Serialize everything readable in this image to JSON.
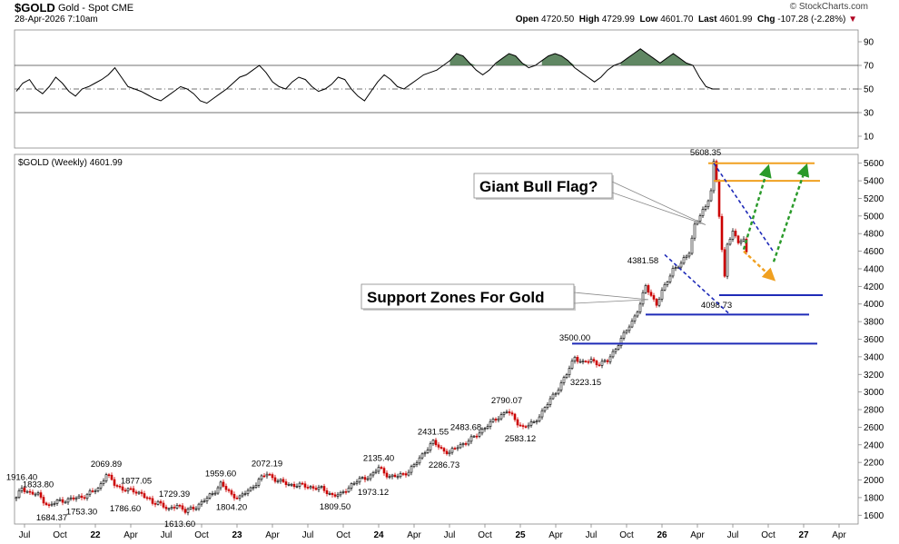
{
  "header": {
    "symbol": "$GOLD",
    "description": "Gold - Spot",
    "exchange": "CME",
    "datetime": "28-Apr-2026 7:10am",
    "brand": "© StockCharts.com",
    "open_label": "Open",
    "open": "4720.50",
    "high_label": "High",
    "high": "4729.99",
    "low_label": "Low",
    "low": "4601.70",
    "last_label": "Last",
    "last": "4601.99",
    "chg_label": "Chg",
    "chg": "-107.28 (-2.28%)",
    "chg_icon": "down-triangle-icon",
    "accent_down": "#cc0000",
    "accent_up": "#000000"
  },
  "chart_data": [
    {
      "type": "line",
      "name": "indicator_panel",
      "title": "",
      "y_ticks": [
        90,
        70,
        50,
        30,
        10
      ],
      "ylim": [
        0,
        100
      ],
      "reference_lines": [
        70,
        50,
        30
      ],
      "fill_color": "#4f7a52",
      "x": [
        0,
        2,
        4,
        6,
        8,
        10,
        12,
        14,
        16,
        18,
        20,
        22,
        24,
        26,
        28,
        30,
        32,
        34,
        36,
        38,
        40,
        42,
        44,
        46,
        48,
        50,
        52,
        54,
        56,
        58,
        60,
        62,
        64,
        66,
        68,
        70,
        72,
        74,
        76,
        78,
        80,
        82,
        84,
        86,
        88,
        90,
        92,
        94,
        96,
        98,
        100,
        102,
        104,
        106,
        108,
        110,
        112,
        114,
        116,
        118,
        120,
        122,
        124,
        126,
        128,
        130,
        132,
        134,
        136,
        138,
        140,
        142,
        144,
        146,
        148,
        150,
        152,
        154,
        156,
        158,
        160,
        162,
        164,
        166,
        168,
        170,
        172,
        174,
        176,
        178,
        180,
        182,
        184,
        186,
        188,
        190,
        192,
        194,
        196,
        198,
        200,
        202,
        204,
        206,
        208,
        210,
        212,
        214
      ],
      "values": [
        48,
        55,
        58,
        50,
        46,
        52,
        60,
        55,
        48,
        44,
        50,
        52,
        55,
        58,
        62,
        68,
        60,
        52,
        50,
        48,
        45,
        42,
        40,
        44,
        48,
        52,
        50,
        46,
        40,
        38,
        42,
        46,
        50,
        55,
        60,
        62,
        66,
        70,
        64,
        56,
        52,
        50,
        56,
        60,
        58,
        52,
        48,
        50,
        54,
        60,
        58,
        50,
        44,
        40,
        48,
        56,
        62,
        58,
        52,
        50,
        54,
        58,
        62,
        64,
        66,
        70,
        74,
        80,
        78,
        72,
        66,
        62,
        66,
        72,
        76,
        80,
        78,
        72,
        68,
        70,
        74,
        78,
        80,
        78,
        74,
        68,
        64,
        60,
        56,
        60,
        66,
        70,
        72,
        76,
        80,
        84,
        80,
        76,
        72,
        76,
        80,
        76,
        72,
        70,
        60,
        52,
        50,
        50
      ]
    },
    {
      "type": "line",
      "name": "gold_weekly",
      "title": "$GOLD (Weekly) 4601.99",
      "ylim": [
        1500,
        5700
      ],
      "y_ticks": [
        1600,
        1800,
        2000,
        2200,
        2400,
        2600,
        2800,
        3000,
        3200,
        3400,
        3600,
        3800,
        4000,
        4200,
        4400,
        4600,
        4800,
        5000,
        5200,
        5400,
        5600
      ],
      "x_ticks": [
        {
          "label": "Jul",
          "i": 3
        },
        {
          "label": "Oct",
          "i": 16
        },
        {
          "label": "22",
          "i": 29
        },
        {
          "label": "Apr",
          "i": 42
        },
        {
          "label": "Jul",
          "i": 55
        },
        {
          "label": "Oct",
          "i": 68
        },
        {
          "label": "23",
          "i": 81
        },
        {
          "label": "Apr",
          "i": 94
        },
        {
          "label": "Jul",
          "i": 107
        },
        {
          "label": "Oct",
          "i": 120
        },
        {
          "label": "24",
          "i": 133
        },
        {
          "label": "Apr",
          "i": 146
        },
        {
          "label": "Jul",
          "i": 159
        },
        {
          "label": "Oct",
          "i": 172
        },
        {
          "label": "25",
          "i": 185
        },
        {
          "label": "Apr",
          "i": 198
        },
        {
          "label": "Jul",
          "i": 211
        },
        {
          "label": "Oct",
          "i": 224
        },
        {
          "label": "26",
          "i": 237
        },
        {
          "label": "Apr",
          "i": 250
        },
        {
          "label": "Jul",
          "i": 263
        },
        {
          "label": "Oct",
          "i": 276
        },
        {
          "label": "27",
          "i": 289
        },
        {
          "label": "Apr",
          "i": 302
        }
      ],
      "week_count": 308,
      "anchors": [
        [
          0,
          1790
        ],
        [
          2,
          1916
        ],
        [
          5,
          1850
        ],
        [
          8,
          1833
        ],
        [
          12,
          1700
        ],
        [
          15,
          1760
        ],
        [
          20,
          1780
        ],
        [
          25,
          1820
        ],
        [
          30,
          1900
        ],
        [
          33,
          2070
        ],
        [
          36,
          1950
        ],
        [
          39,
          1900
        ],
        [
          42,
          1877
        ],
        [
          46,
          1850
        ],
        [
          50,
          1730
        ],
        [
          52,
          1760
        ],
        [
          56,
          1650
        ],
        [
          59,
          1729
        ],
        [
          62,
          1640
        ],
        [
          66,
          1700
        ],
        [
          70,
          1790
        ],
        [
          73,
          1880
        ],
        [
          75,
          1959
        ],
        [
          79,
          1830
        ],
        [
          82,
          1804
        ],
        [
          86,
          1900
        ],
        [
          89,
          2000
        ],
        [
          92,
          2072
        ],
        [
          96,
          1990
        ],
        [
          100,
          1950
        ],
        [
          104,
          1940
        ],
        [
          108,
          1920
        ],
        [
          112,
          1900
        ],
        [
          116,
          1830
        ],
        [
          119,
          1830
        ],
        [
          123,
          1950
        ],
        [
          126,
          2000
        ],
        [
          130,
          2050
        ],
        [
          133,
          2135
        ],
        [
          137,
          2040
        ],
        [
          140,
          2040
        ],
        [
          144,
          2100
        ],
        [
          147,
          2200
        ],
        [
          150,
          2330
        ],
        [
          153,
          2431
        ],
        [
          156,
          2350
        ],
        [
          159,
          2310
        ],
        [
          162,
          2380
        ],
        [
          165,
          2430
        ],
        [
          168,
          2483
        ],
        [
          172,
          2600
        ],
        [
          176,
          2690
        ],
        [
          180,
          2790
        ],
        [
          184,
          2650
        ],
        [
          186,
          2600
        ],
        [
          190,
          2650
        ],
        [
          194,
          2820
        ],
        [
          198,
          3000
        ],
        [
          202,
          3200
        ],
        [
          205,
          3400
        ],
        [
          208,
          3330
        ],
        [
          211,
          3360
        ],
        [
          214,
          3320
        ],
        [
          217,
          3350
        ],
        [
          220,
          3500
        ],
        [
          223,
          3650
        ],
        [
          226,
          3800
        ],
        [
          229,
          4000
        ],
        [
          231,
          4200
        ],
        [
          233,
          4100
        ],
        [
          235,
          4000
        ],
        [
          238,
          4200
        ],
        [
          241,
          4400
        ],
        [
          244,
          4450
        ],
        [
          247,
          4600
        ],
        [
          249,
          4900
        ],
        [
          251,
          5000
        ],
        [
          253,
          5100
        ],
        [
          255,
          5300
        ],
        [
          256,
          5608
        ],
        [
          257,
          5400
        ],
        [
          258,
          5000
        ],
        [
          259,
          4600
        ],
        [
          260,
          4300
        ],
        [
          261,
          4700
        ],
        [
          263,
          4820
        ],
        [
          265,
          4700
        ],
        [
          267,
          4720
        ],
        [
          268,
          4602
        ]
      ],
      "last_week": 268,
      "annotations": [
        {
          "label": "1916.40",
          "i": 2,
          "price": 1916.4,
          "pos": "above"
        },
        {
          "label": "1833.80",
          "i": 8,
          "price": 1833.8,
          "pos": "above"
        },
        {
          "label": "1684.37",
          "i": 13,
          "price": 1684.37,
          "pos": "below"
        },
        {
          "label": "1753.30",
          "i": 24,
          "price": 1753.3,
          "pos": "below"
        },
        {
          "label": "2069.89",
          "i": 33,
          "price": 2069.89,
          "pos": "above"
        },
        {
          "label": "1786.60",
          "i": 40,
          "price": 1786.6,
          "pos": "below"
        },
        {
          "label": "1877.05",
          "i": 44,
          "price": 1877.05,
          "pos": "above"
        },
        {
          "label": "1729.39",
          "i": 58,
          "price": 1729.39,
          "pos": "above"
        },
        {
          "label": "1613.60",
          "i": 60,
          "price": 1613.6,
          "pos": "below"
        },
        {
          "label": "1959.60",
          "i": 75,
          "price": 1959.6,
          "pos": "above"
        },
        {
          "label": "1804.20",
          "i": 79,
          "price": 1804.2,
          "pos": "below"
        },
        {
          "label": "2072.19",
          "i": 92,
          "price": 2072.19,
          "pos": "above"
        },
        {
          "label": "1809.50",
          "i": 117,
          "price": 1809.5,
          "pos": "below"
        },
        {
          "label": "2135.40",
          "i": 133,
          "price": 2135.4,
          "pos": "above"
        },
        {
          "label": "1973.12",
          "i": 131,
          "price": 1973.12,
          "pos": "below"
        },
        {
          "label": "2431.55",
          "i": 153,
          "price": 2431.55,
          "pos": "above"
        },
        {
          "label": "2286.73",
          "i": 157,
          "price": 2286.73,
          "pos": "below"
        },
        {
          "label": "2483.68",
          "i": 165,
          "price": 2483.68,
          "pos": "above"
        },
        {
          "label": "2790.07",
          "i": 180,
          "price": 2790.07,
          "pos": "above"
        },
        {
          "label": "2583.12",
          "i": 185,
          "price": 2583.12,
          "pos": "below"
        },
        {
          "label": "3500.00",
          "i": 205,
          "price": 3500,
          "pos": "above"
        },
        {
          "label": "3223.15",
          "i": 209,
          "price": 3223.15,
          "pos": "below"
        },
        {
          "label": "4381.58",
          "i": 230,
          "price": 4381.58,
          "pos": "above"
        },
        {
          "label": "5608.35",
          "i": 253,
          "price": 5608.35,
          "pos": "above"
        },
        {
          "label": "4098.73",
          "i": 257,
          "price": 4098.73,
          "pos": "below"
        }
      ],
      "horizontal_levels": [
        {
          "price": 5600,
          "from": 254,
          "to": 293,
          "color": "#f0a020"
        },
        {
          "price": 5400,
          "from": 256,
          "to": 295,
          "color": "#f0a020"
        },
        {
          "price": 4100,
          "from": 258,
          "to": 296,
          "color": "#1f2bb8"
        },
        {
          "price": 3880,
          "from": 231,
          "to": 291,
          "color": "#1f2bb8"
        },
        {
          "price": 3550,
          "from": 204,
          "to": 294,
          "color": "#1f2bb8"
        }
      ],
      "channel_lines": [
        {
          "from": [
            256,
            5600
          ],
          "to": [
            278,
            4590
          ],
          "color": "#1f2bb8"
        },
        {
          "from": [
            238,
            4560
          ],
          "to": [
            262,
            3880
          ],
          "color": "#1f2bb8"
        }
      ],
      "projection_arrows": [
        {
          "from": [
            267,
            4600
          ],
          "to": [
            278,
            4280
          ],
          "color": "#f0a020"
        },
        {
          "from": [
            267,
            4620
          ],
          "to": [
            276,
            5560
          ],
          "color": "#2a9a2a"
        },
        {
          "from": [
            278,
            4480
          ],
          "to": [
            290,
            5570
          ],
          "color": "#2a9a2a"
        }
      ],
      "callouts": [
        {
          "text": "Giant Bull Flag?",
          "target_i": 253,
          "target_price": 4900
        },
        {
          "text": "Support Zones For Gold",
          "target_i": 232,
          "target_price": 4050
        }
      ]
    }
  ]
}
